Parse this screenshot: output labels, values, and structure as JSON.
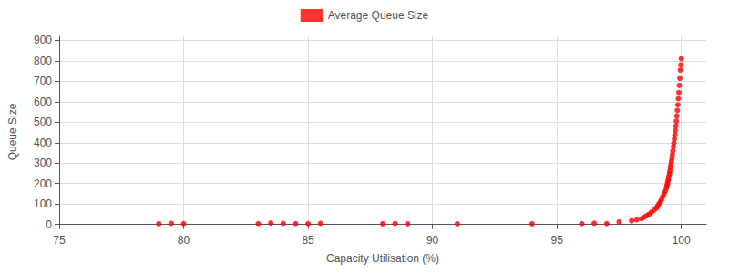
{
  "chart_data": {
    "type": "scatter",
    "xlabel": "Capacity Utilisation (%)",
    "ylabel": "Queue Size",
    "x": [
      79.0,
      79.5,
      80.0,
      83.0,
      83.5,
      84.0,
      84.5,
      85.0,
      85.5,
      88.0,
      88.5,
      89.0,
      91.0,
      94.0,
      96.0,
      96.5,
      97.0,
      97.5,
      98.0,
      98.2,
      98.4,
      98.5,
      98.6,
      98.7,
      98.8,
      98.9,
      99.0,
      99.05,
      99.1,
      99.15,
      99.2,
      99.25,
      99.3,
      99.35,
      99.4,
      99.42,
      99.44,
      99.46,
      99.48,
      99.5,
      99.52,
      99.54,
      99.56,
      99.58,
      99.6,
      99.62,
      99.64,
      99.66,
      99.68,
      99.7,
      99.72,
      99.74,
      99.76,
      99.78,
      99.8,
      99.82,
      99.84,
      99.86,
      99.88,
      99.9,
      99.92,
      99.94,
      99.96,
      99.98,
      100.0
    ],
    "series": [
      {
        "name": "Average Queue Size",
        "color": "#ff0000",
        "values": [
          3,
          5,
          4,
          4,
          7,
          5,
          4,
          4,
          5,
          3,
          5,
          3,
          3,
          3,
          4,
          6,
          4,
          12,
          18,
          22,
          28,
          35,
          42,
          50,
          60,
          70,
          80,
          90,
          100,
          110,
          120,
          135,
          148,
          162,
          178,
          188,
          198,
          210,
          220,
          235,
          248,
          262,
          278,
          292,
          308,
          325,
          342,
          360,
          380,
          398,
          418,
          438,
          460,
          482,
          505,
          530,
          558,
          585,
          615,
          645,
          680,
          715,
          755,
          780,
          810
        ]
      }
    ],
    "xlim": [
      75,
      101
    ],
    "ylim": [
      -15,
      920
    ],
    "xticks": [
      75,
      80,
      85,
      90,
      95,
      100
    ],
    "yticks": [
      0,
      100,
      200,
      300,
      400,
      500,
      600,
      700,
      800,
      900
    ],
    "grid": true,
    "legend": "top"
  }
}
